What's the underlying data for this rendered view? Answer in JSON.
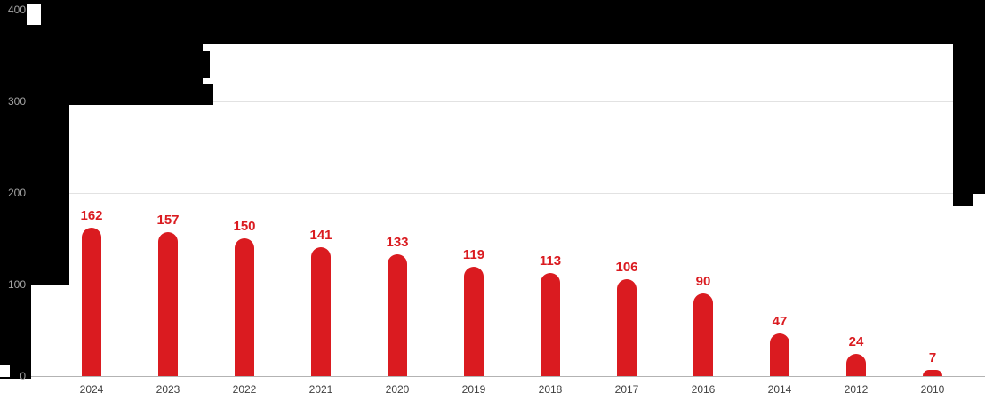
{
  "chart_data": {
    "type": "bar",
    "categories": [
      "2024",
      "2023",
      "2022",
      "2021",
      "2020",
      "2019",
      "2018",
      "2017",
      "2016",
      "2014",
      "2012",
      "2010"
    ],
    "values": [
      162,
      157,
      150,
      141,
      133,
      119,
      113,
      106,
      90,
      47,
      24,
      7
    ],
    "title": "",
    "xlabel": "",
    "ylabel": "",
    "ylim": [
      0,
      400
    ],
    "yticks": [
      0,
      100,
      200,
      300,
      400
    ],
    "grid": true,
    "legend": false,
    "bar_color": "#da1b20",
    "value_label_color": "#da1b20",
    "axis_label_color": "#a3a3a3",
    "category_label_color": "#3f3f3f",
    "redaction_color": "#000000"
  }
}
